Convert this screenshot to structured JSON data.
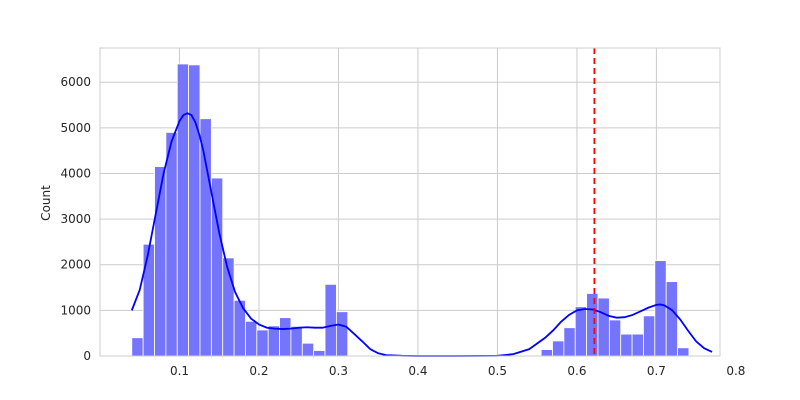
{
  "chart_data": {
    "type": "bar",
    "subtype": "histogram-with-kde",
    "title": "",
    "xlabel": "",
    "ylabel": "Count",
    "xlim": [
      0.0,
      0.78
    ],
    "ylim": [
      0,
      6750
    ],
    "xticks": [
      0.1,
      0.2,
      0.3,
      0.4,
      0.5,
      0.6,
      0.7,
      0.8
    ],
    "yticks": [
      0,
      1000,
      2000,
      3000,
      4000,
      5000,
      6000
    ],
    "grid": true,
    "bin_width": 0.0143,
    "bins": [
      {
        "x0": 0.04,
        "count": 400
      },
      {
        "x0": 0.0543,
        "count": 2450
      },
      {
        "x0": 0.0686,
        "count": 4150
      },
      {
        "x0": 0.0829,
        "count": 4900
      },
      {
        "x0": 0.0972,
        "count": 6400
      },
      {
        "x0": 0.1115,
        "count": 6380
      },
      {
        "x0": 0.1258,
        "count": 5200
      },
      {
        "x0": 0.1401,
        "count": 3900
      },
      {
        "x0": 0.1544,
        "count": 2150
      },
      {
        "x0": 0.1687,
        "count": 1220
      },
      {
        "x0": 0.183,
        "count": 760
      },
      {
        "x0": 0.1973,
        "count": 570
      },
      {
        "x0": 0.2116,
        "count": 660
      },
      {
        "x0": 0.2259,
        "count": 840
      },
      {
        "x0": 0.2402,
        "count": 650
      },
      {
        "x0": 0.2545,
        "count": 280
      },
      {
        "x0": 0.2688,
        "count": 120
      },
      {
        "x0": 0.2831,
        "count": 1570
      },
      {
        "x0": 0.2974,
        "count": 970
      },
      {
        "x0": 0.555,
        "count": 140
      },
      {
        "x0": 0.5693,
        "count": 330
      },
      {
        "x0": 0.5836,
        "count": 620
      },
      {
        "x0": 0.5979,
        "count": 1080
      },
      {
        "x0": 0.6122,
        "count": 1370
      },
      {
        "x0": 0.6265,
        "count": 1270
      },
      {
        "x0": 0.6408,
        "count": 790
      },
      {
        "x0": 0.6551,
        "count": 480
      },
      {
        "x0": 0.6694,
        "count": 480
      },
      {
        "x0": 0.6837,
        "count": 880
      },
      {
        "x0": 0.698,
        "count": 2090
      },
      {
        "x0": 0.7123,
        "count": 1630
      },
      {
        "x0": 0.7266,
        "count": 180
      }
    ],
    "kde_curve": {
      "x": [
        0.04,
        0.05,
        0.06,
        0.07,
        0.08,
        0.09,
        0.1,
        0.105,
        0.11,
        0.115,
        0.12,
        0.125,
        0.13,
        0.14,
        0.15,
        0.16,
        0.17,
        0.18,
        0.19,
        0.2,
        0.21,
        0.22,
        0.23,
        0.24,
        0.25,
        0.26,
        0.27,
        0.28,
        0.29,
        0.3,
        0.31,
        0.32,
        0.33,
        0.34,
        0.35,
        0.36,
        0.38,
        0.4,
        0.45,
        0.5,
        0.52,
        0.54,
        0.56,
        0.57,
        0.58,
        0.59,
        0.6,
        0.61,
        0.62,
        0.63,
        0.64,
        0.65,
        0.66,
        0.67,
        0.68,
        0.69,
        0.7,
        0.705,
        0.71,
        0.72,
        0.73,
        0.74,
        0.75,
        0.76,
        0.77
      ],
      "y": [
        1000,
        1450,
        2200,
        3100,
        4000,
        4700,
        5150,
        5280,
        5320,
        5280,
        5120,
        4850,
        4500,
        3600,
        2700,
        1950,
        1400,
        1050,
        820,
        690,
        620,
        600,
        590,
        600,
        620,
        630,
        620,
        620,
        660,
        690,
        640,
        480,
        320,
        150,
        60,
        20,
        5,
        0,
        0,
        5,
        40,
        150,
        400,
        560,
        750,
        900,
        1000,
        1030,
        1020,
        960,
        880,
        840,
        850,
        900,
        980,
        1060,
        1120,
        1130,
        1110,
        1000,
        800,
        550,
        320,
        170,
        90
      ]
    },
    "reference_line": {
      "x": 0.622,
      "style": "dashed"
    },
    "colors": {
      "bars": "#7575fb",
      "bar_edge": "#ffffff",
      "kde": "#0000ff",
      "reference_line": "#ff0000",
      "grid": "#cccccc",
      "spine": "#cccccc",
      "text": "#262626"
    }
  }
}
